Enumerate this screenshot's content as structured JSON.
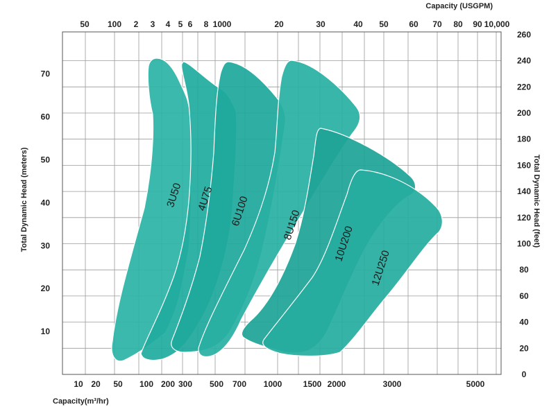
{
  "chart_data": {
    "type": "area",
    "title": "",
    "x_bottom": {
      "label": "Capacity(m³/hr)",
      "ticks": [
        "10",
        "20",
        "50",
        "100",
        "200",
        "300",
        "500",
        "700",
        "1000",
        "1500",
        "2000",
        "3000",
        "5000"
      ]
    },
    "x_top": {
      "label": "Capacity (USGPM)",
      "ticks": [
        "50",
        "100",
        "2",
        "3",
        "4",
        "5",
        "6",
        "8",
        "1000",
        "20",
        "30",
        "40",
        "50",
        "60",
        "70",
        "80",
        "90",
        "10,000"
      ]
    },
    "y_left": {
      "label": "Total Dynamic Head (meters)",
      "ticks": [
        "10",
        "20",
        "30",
        "40",
        "50",
        "60",
        "70"
      ],
      "ylim": [
        0,
        80
      ]
    },
    "y_right": {
      "label": "Total Dynamic Head (feet)",
      "ticks": [
        "0",
        "20",
        "40",
        "60",
        "80",
        "100",
        "120",
        "140",
        "160",
        "180",
        "200",
        "220",
        "240",
        "260"
      ],
      "ylim": [
        0,
        260
      ]
    },
    "grid": true,
    "series": [
      {
        "name": "3U50",
        "head_range_m": [
          3,
          74
        ]
      },
      {
        "name": "4U75",
        "head_range_m": [
          4,
          73
        ]
      },
      {
        "name": "6U100",
        "head_range_m": [
          4,
          73
        ]
      },
      {
        "name": "8U150",
        "head_range_m": [
          5,
          73
        ]
      },
      {
        "name": "10U200",
        "head_range_m": [
          5,
          57
        ]
      },
      {
        "name": "12U250",
        "head_range_m": [
          5,
          48
        ]
      }
    ],
    "colors": {
      "fill": "#26b3a6",
      "fill_dark": "#169e92",
      "outline": "#ffffff",
      "grid": "#9a9a9a",
      "frame": "#555555"
    }
  }
}
